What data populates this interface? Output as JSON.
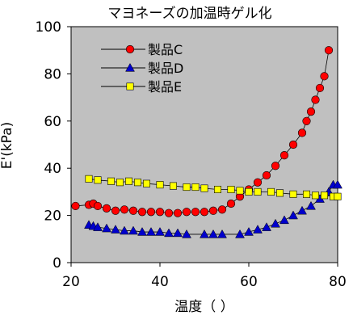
{
  "chart_data": {
    "type": "scatter",
    "title": "マヨネーズの加温時ゲル化",
    "xlabel": "温度（ ）",
    "ylabel": "E'(kPa)",
    "xlim": [
      20,
      80
    ],
    "ylim": [
      0,
      100
    ],
    "xticks": [
      20,
      40,
      60,
      80
    ],
    "yticks": [
      0,
      20,
      40,
      60,
      80,
      100
    ],
    "plot_background": "#c0c0c0",
    "grid": false,
    "legend_position": "top-left",
    "series": [
      {
        "name": "製品C",
        "marker": "circle",
        "color": "#ff0000",
        "x": [
          21,
          24,
          25,
          26,
          28,
          30,
          32,
          34,
          36,
          38,
          40,
          42,
          44,
          46,
          48,
          50,
          52,
          54,
          56,
          58,
          60,
          62,
          64,
          66,
          68,
          70,
          72,
          73,
          74,
          75,
          76,
          77,
          78
        ],
        "y": [
          24,
          24.5,
          25,
          24,
          23,
          22,
          22.5,
          22,
          21.5,
          21.5,
          21.5,
          21,
          21,
          21.5,
          21.5,
          21.5,
          22,
          22.5,
          25,
          28,
          31,
          34,
          37,
          41,
          45.5,
          50,
          55,
          60,
          64,
          69,
          74,
          79,
          90
        ]
      },
      {
        "name": "製品D",
        "marker": "triangle",
        "color": "#0000cc",
        "x": [
          24,
          25,
          26,
          28,
          30,
          32,
          34,
          36,
          38,
          40,
          42,
          44,
          46,
          50,
          52,
          54,
          58,
          60,
          62,
          64,
          66,
          68,
          70,
          72,
          74,
          76,
          78,
          79,
          80
        ],
        "y": [
          16,
          15.5,
          15,
          14.5,
          14,
          13.5,
          13.5,
          13,
          13,
          13,
          12.5,
          12.5,
          12,
          12,
          12,
          12,
          12,
          13,
          14,
          15,
          16.5,
          18,
          20,
          22,
          24,
          27,
          30,
          33,
          33
        ]
      },
      {
        "name": "製品E",
        "marker": "square",
        "color": "#ffff00",
        "x": [
          24,
          26,
          29,
          31,
          33,
          35,
          37,
          40,
          43,
          46,
          48,
          50,
          53,
          56,
          58,
          60,
          62,
          65,
          67,
          70,
          73,
          75,
          77,
          79,
          80
        ],
        "y": [
          35.5,
          35,
          34.5,
          34,
          34.5,
          34,
          33.5,
          33,
          32.5,
          32,
          32,
          31.5,
          31,
          31,
          30.5,
          30,
          30,
          30,
          29.5,
          29,
          29,
          28.5,
          28.5,
          28,
          28
        ]
      }
    ]
  }
}
